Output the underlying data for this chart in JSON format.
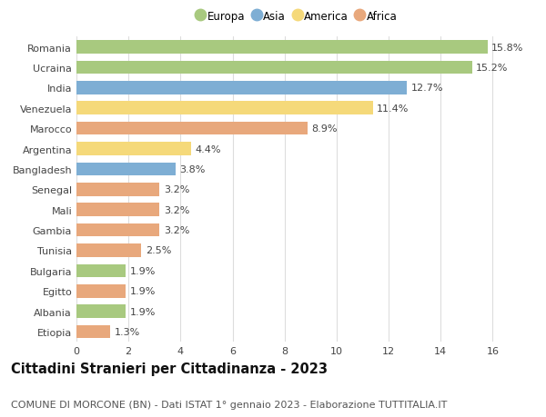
{
  "countries": [
    "Romania",
    "Ucraina",
    "India",
    "Venezuela",
    "Marocco",
    "Argentina",
    "Bangladesh",
    "Senegal",
    "Mali",
    "Gambia",
    "Tunisia",
    "Bulgaria",
    "Egitto",
    "Albania",
    "Etiopia"
  ],
  "values": [
    15.8,
    15.2,
    12.7,
    11.4,
    8.9,
    4.4,
    3.8,
    3.2,
    3.2,
    3.2,
    2.5,
    1.9,
    1.9,
    1.9,
    1.3
  ],
  "continents": [
    "Europa",
    "Europa",
    "Asia",
    "America",
    "Africa",
    "America",
    "Asia",
    "Africa",
    "Africa",
    "Africa",
    "Africa",
    "Europa",
    "Africa",
    "Europa",
    "Africa"
  ],
  "colors": {
    "Europa": "#a8c97f",
    "Asia": "#7eaed4",
    "America": "#f5d97a",
    "Africa": "#e8a87c"
  },
  "legend_order": [
    "Europa",
    "Asia",
    "America",
    "Africa"
  ],
  "title": "Cittadini Stranieri per Cittadinanza - 2023",
  "subtitle": "COMUNE DI MORCONE (BN) - Dati ISTAT 1° gennaio 2023 - Elaborazione TUTTITALIA.IT",
  "xlim": [
    0,
    17
  ],
  "xticks": [
    0,
    2,
    4,
    6,
    8,
    10,
    12,
    14,
    16
  ],
  "bar_height": 0.65,
  "background_color": "#ffffff",
  "grid_color": "#dddddd",
  "label_fontsize": 8.0,
  "title_fontsize": 10.5,
  "subtitle_fontsize": 8.0
}
